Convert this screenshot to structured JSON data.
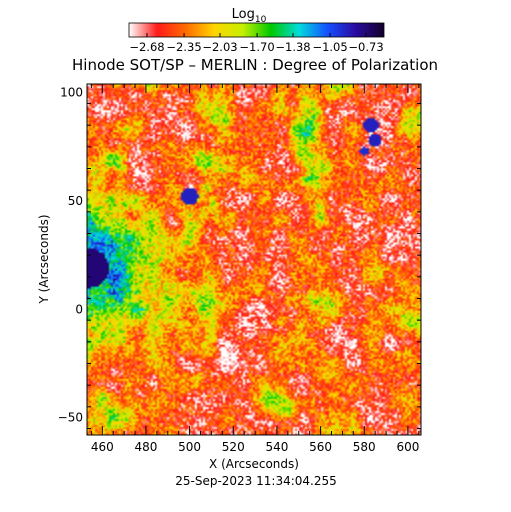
{
  "chart_data": {
    "type": "heatmap",
    "title": "Hinode SOT/SP – MERLIN : Degree of Polarization",
    "xlabel": "X (Arcseconds)",
    "ylabel": "Y (Arcseconds)",
    "timestamp": "25-Sep-2023 11:34:04.255",
    "xlim": [
      453,
      606
    ],
    "ylim": [
      -58,
      104
    ],
    "xticks": [
      460,
      480,
      500,
      520,
      540,
      560,
      580,
      600
    ],
    "yticks": [
      -50,
      0,
      50,
      100
    ],
    "colorbar": {
      "title": "Log",
      "title_subscript": "10",
      "min": -2.84,
      "max": -0.57,
      "ticks": [
        -2.68,
        -2.35,
        -2.03,
        -1.7,
        -1.38,
        -1.05,
        -0.73
      ],
      "tick_labels": [
        "−2.68",
        "−2.35",
        "−2.03",
        "−1.70",
        "−1.38",
        "−1.05",
        "−0.73"
      ],
      "colormap": [
        "#ffffff",
        "#ff1a1a",
        "#ff6a00",
        "#ffd400",
        "#c8f000",
        "#00c800",
        "#00dcdc",
        "#1450ff",
        "#2a0aa0",
        "#14002a"
      ]
    },
    "features": [
      {
        "kind": "sunspot",
        "x": 454,
        "y": 19,
        "radius": 9,
        "value": -0.73
      },
      {
        "kind": "pore",
        "x": 500,
        "y": 52,
        "radius": 4,
        "value": -0.9
      },
      {
        "kind": "pore",
        "x": 583,
        "y": 85,
        "radius": 3.5,
        "value": -0.9
      },
      {
        "kind": "pore",
        "x": 585,
        "y": 78,
        "radius": 3,
        "value": -0.9
      },
      {
        "kind": "pore",
        "x": 580,
        "y": 73,
        "radius": 2,
        "value": -0.95
      }
    ]
  }
}
